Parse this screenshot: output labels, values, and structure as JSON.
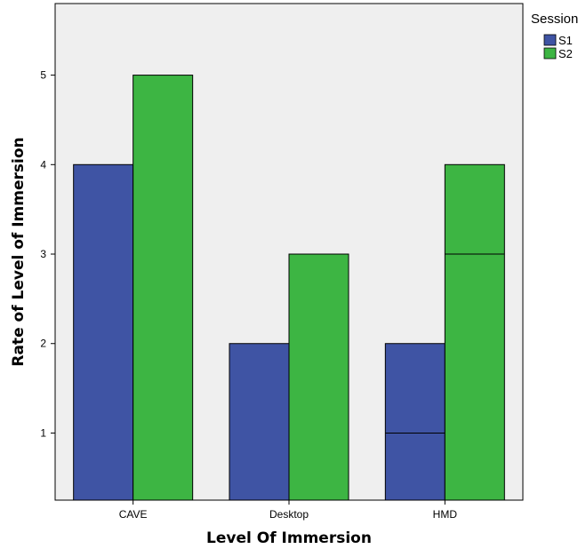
{
  "chart_data": {
    "type": "bar",
    "title": "",
    "xlabel": "Level Of Immersion",
    "ylabel": "Rate of Level of Immersion",
    "categories": [
      "CAVE",
      "Desktop",
      "HMD"
    ],
    "yticks": [
      1,
      2,
      3,
      4,
      5
    ],
    "ylim": [
      0.25,
      5.8
    ],
    "grid": false,
    "legend": {
      "title": "Session",
      "position": "top-right"
    },
    "series": [
      {
        "name": "S1",
        "color": "#3f54a4",
        "values": [
          4,
          2,
          2
        ],
        "inner_lines": [
          [],
          [],
          [
            1
          ]
        ]
      },
      {
        "name": "S2",
        "color": "#3db543",
        "values": [
          5,
          3,
          4
        ],
        "inner_lines": [
          [],
          [],
          [
            3
          ]
        ]
      }
    ]
  },
  "colors": {
    "plot_background": "#efefef",
    "axis": "#000000"
  }
}
